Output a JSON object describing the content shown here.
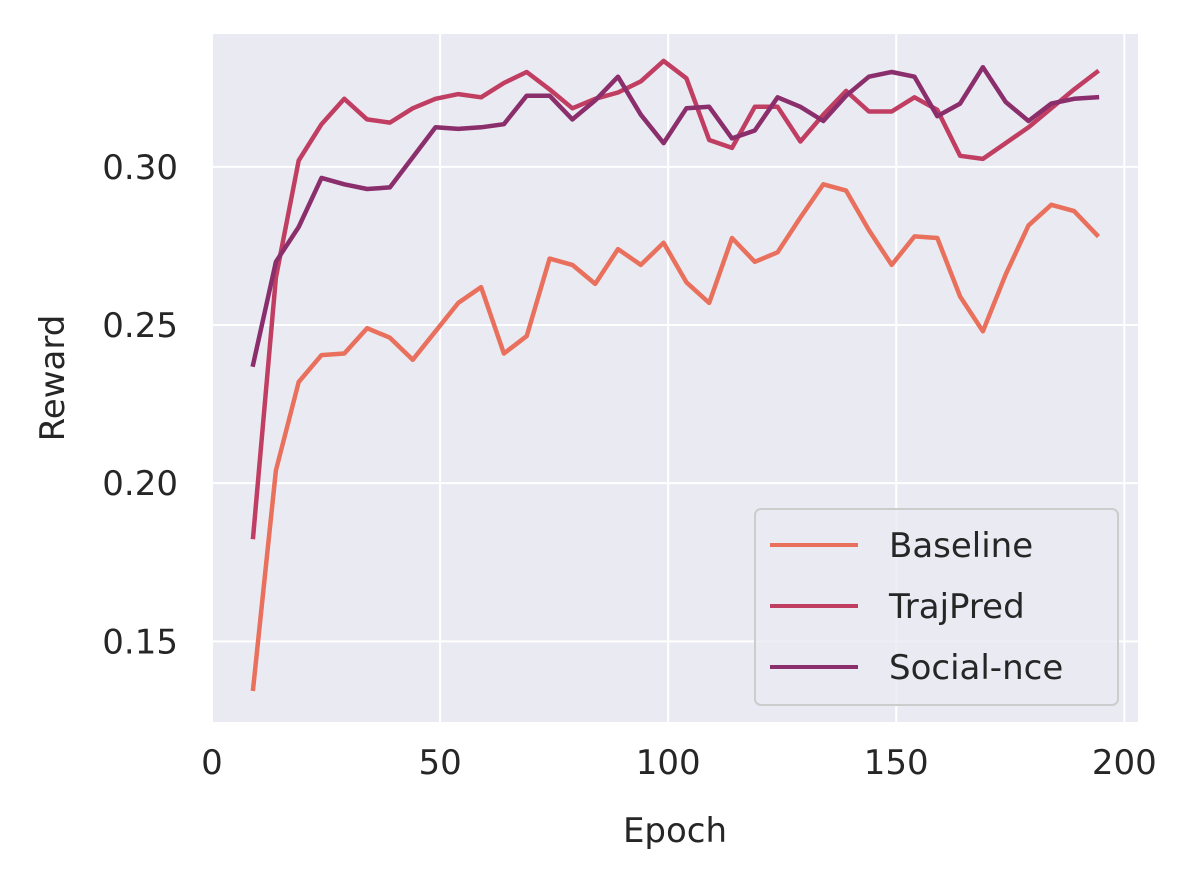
{
  "chart_data": {
    "type": "line",
    "xlabel": "Epoch",
    "ylabel": "Reward",
    "xlim": [
      0,
      203
    ],
    "ylim": [
      0.1245,
      0.342
    ],
    "xticks": [
      0,
      50,
      100,
      150,
      200
    ],
    "yticks": [
      0.15,
      0.2,
      0.25,
      0.3
    ],
    "ytick_labels": [
      "0.15",
      "0.20",
      "0.25",
      "0.30"
    ],
    "grid": true,
    "legend_position": "lower-right",
    "x": [
      9,
      14,
      19,
      24,
      29,
      34,
      39,
      44,
      49,
      54,
      59,
      64,
      69,
      74,
      79,
      84,
      89,
      94,
      99,
      104,
      109,
      114,
      119,
      124,
      129,
      134,
      139,
      144,
      149,
      154,
      159,
      164,
      169,
      174,
      179,
      184,
      189,
      194
    ],
    "series": [
      {
        "name": "Baseline",
        "color": "#e8705c",
        "values": [
          0.135,
          0.204,
          0.232,
          0.2405,
          0.241,
          0.249,
          0.246,
          0.239,
          0.248,
          0.257,
          0.262,
          0.241,
          0.2465,
          0.271,
          0.269,
          0.263,
          0.274,
          0.269,
          0.276,
          0.2635,
          0.257,
          0.2775,
          0.27,
          0.273,
          0.284,
          0.2945,
          0.2925,
          0.28,
          0.269,
          0.278,
          0.2775,
          0.259,
          0.248,
          0.266,
          0.2815,
          0.288,
          0.286,
          0.2785
        ]
      },
      {
        "name": "TrajPred",
        "color": "#c13e63",
        "values": [
          0.183,
          0.265,
          0.302,
          0.3135,
          0.3215,
          0.315,
          0.314,
          0.3185,
          0.3215,
          0.323,
          0.322,
          0.3265,
          0.33,
          0.3245,
          0.3185,
          0.3215,
          0.3235,
          0.327,
          0.3335,
          0.328,
          0.3085,
          0.306,
          0.319,
          0.319,
          0.308,
          0.3165,
          0.324,
          0.3175,
          0.3175,
          0.322,
          0.318,
          0.3035,
          0.3025,
          0.3075,
          0.3125,
          0.3185,
          0.3245,
          0.33
        ]
      },
      {
        "name": "Social-nce",
        "color": "#8b2e6c",
        "values": [
          0.2375,
          0.27,
          0.281,
          0.2965,
          0.2945,
          0.293,
          0.2935,
          0.303,
          0.3125,
          0.312,
          0.3125,
          0.3135,
          0.3225,
          0.3225,
          0.315,
          0.321,
          0.3285,
          0.3165,
          0.3075,
          0.3185,
          0.319,
          0.309,
          0.3115,
          0.322,
          0.319,
          0.3145,
          0.3225,
          0.3285,
          0.33,
          0.3285,
          0.316,
          0.32,
          0.3315,
          0.3205,
          0.3145,
          0.32,
          0.3215,
          0.322
        ]
      }
    ]
  }
}
